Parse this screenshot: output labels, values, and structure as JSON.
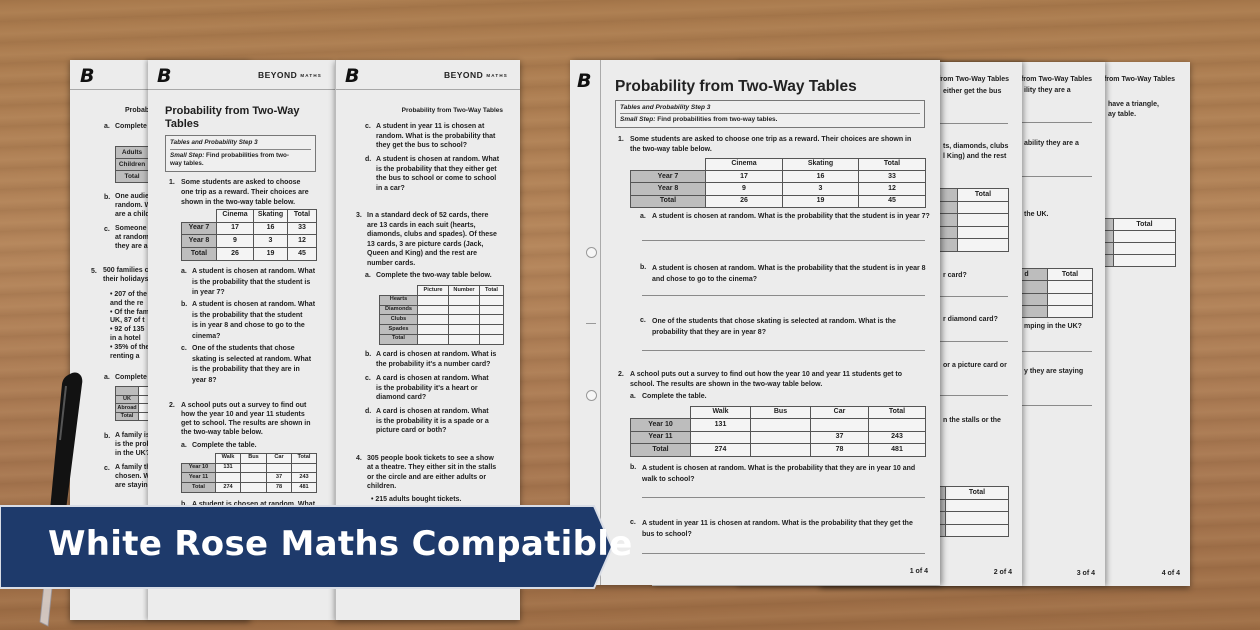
{
  "banner": {
    "text": "White Rose Maths Compatible",
    "color": "#1e3a6b"
  },
  "brand": {
    "logo_letter": "B",
    "name": "BEYOND",
    "sub": "MATHS"
  },
  "sheet1": {
    "title": "Probability from Two-Way Tables",
    "step": "Tables and Probability Step 3",
    "small_step_label": "Small Step:",
    "small_step": "Find probabilities from two-way tables.",
    "q1": {
      "num": "1.",
      "lines": [
        "Some students are asked to choose one trip as a reward. Their choices are shown in",
        "the two-way table below."
      ]
    },
    "table1": {
      "header": [
        "",
        "Cinema",
        "Skating",
        "Total"
      ],
      "rows": [
        [
          "Year 7",
          "17",
          "16",
          "33"
        ],
        [
          "Year 8",
          "9",
          "3",
          "12"
        ],
        [
          "Total",
          "26",
          "19",
          "45"
        ]
      ]
    },
    "q1a": {
      "num": "a.",
      "lines": [
        "A student is chosen at random. What is the probability that the student is in year 7?"
      ]
    },
    "q1b": {
      "num": "b.",
      "lines": [
        "A student is chosen at random. What is the probability that the student is in year 8",
        "and chose to go to the cinema?"
      ]
    },
    "q1c": {
      "num": "c.",
      "lines": [
        "One of the students that chose skating is selected at random. What is the",
        "probability that they are in year 8?"
      ]
    },
    "q2": {
      "num": "2.",
      "lines": [
        "A school puts out a survey to find out how the year 10 and year 11 students get to",
        "school. The results are shown in the two-way table below."
      ]
    },
    "q2a": {
      "num": "a.",
      "lines": [
        "Complete the table."
      ]
    },
    "table2": {
      "header": [
        "",
        "Walk",
        "Bus",
        "Car",
        "Total"
      ],
      "rows": [
        [
          "Year 10",
          "131",
          "",
          "",
          ""
        ],
        [
          "Year 11",
          "",
          "",
          "37",
          "243"
        ],
        [
          "Total",
          "274",
          "",
          "78",
          "481"
        ]
      ]
    },
    "q2b": {
      "num": "b.",
      "lines": [
        "A student is chosen at random. What is the probability that they are in year 10 and",
        "walk to school?"
      ]
    },
    "q2c": {
      "num": "c.",
      "lines": [
        "A student in year 11 is chosen at random. What is the probability that they get the",
        "bus to school?"
      ]
    },
    "footer": "1 of 4"
  },
  "sheet2": {
    "running_title": "Probability from Two-Way Tables",
    "frags": [
      "either get the bus",
      "ts, diamonds, clubs",
      "l King) and the rest",
      "r card?",
      "r diamond card?",
      "or a picture card or",
      "n the stalls or the"
    ],
    "tableA": {
      "header": [
        "",
        "Total"
      ],
      "rows": [
        [
          "",
          ""
        ],
        [
          "",
          ""
        ],
        [
          "",
          ""
        ],
        [
          "",
          ""
        ]
      ]
    },
    "tableB": {
      "header": [
        "",
        "Total"
      ],
      "rows": [
        [
          "",
          ""
        ],
        [
          "",
          ""
        ],
        [
          "",
          ""
        ]
      ]
    },
    "footer": "2 of 4"
  },
  "sheet3": {
    "running_title": "Probability from Two-Way Tables",
    "frags": [
      "ility they are a",
      "ability they are a",
      "the UK.",
      "mping in the UK?",
      "y they are staying"
    ],
    "table": {
      "header": [
        "d",
        "Total"
      ],
      "rows": [
        [
          "",
          ""
        ],
        [
          "",
          ""
        ],
        [
          "",
          ""
        ]
      ]
    },
    "footer": "3 of 4"
  },
  "sheet4": {
    "running_title": "Probability from Two-Way Tables",
    "frags": [
      "have a triangle,",
      "ay table."
    ],
    "table": {
      "header": [
        "",
        "Total"
      ],
      "rows": [
        [
          "",
          ""
        ],
        [
          "",
          ""
        ],
        [
          "",
          ""
        ]
      ]
    },
    "footer": "4 of 4"
  },
  "booklet_left": {
    "running_frag": "Probab",
    "a": {
      "num": "a.",
      "lines": [
        "Complete"
      ]
    },
    "table": {
      "rows": [
        [
          "Adults",
          ""
        ],
        [
          "Children",
          ""
        ],
        [
          "Total",
          ""
        ]
      ]
    },
    "b": {
      "num": "b.",
      "lines": [
        "One audie",
        "random. W",
        "are a child"
      ]
    },
    "c": {
      "num": "c.",
      "lines": [
        "Someone",
        "at random",
        "they are a"
      ]
    },
    "q5": {
      "num": "5.",
      "lines": [
        "500 families c",
        "their holidays"
      ]
    },
    "bullets": [
      "• 207 of the",
      "   and the re",
      "• Of the fam",
      "   UK, 87 of t",
      "• 92 of 135",
      "   in a hotel",
      "• 35% of the",
      "   renting a"
    ],
    "a2": {
      "num": "a.",
      "lines": [
        "Complete"
      ]
    },
    "table2": {
      "header": [
        "",
        "C"
      ],
      "rows": [
        [
          "UK",
          ""
        ],
        [
          "Abroad",
          ""
        ],
        [
          "Total",
          ""
        ]
      ]
    },
    "b2": {
      "num": "b.",
      "lines": [
        "A family is",
        "is the prob",
        "in the UK?"
      ]
    },
    "c2": {
      "num": "c.",
      "lines": [
        "A family th",
        "chosen. W",
        "are staying"
      ]
    }
  },
  "booklet_mid": {
    "title_lines": [
      "Probability from Two-Way",
      "Tables"
    ],
    "step": "Tables and Probability Step 3",
    "small_step_label": "Small Step:",
    "small_step_lines": [
      "Find probabilities from two-",
      "way tables."
    ],
    "q1": {
      "num": "1.",
      "lines": [
        "Some students are asked to choose",
        "one trip as a reward. Their choices are",
        "shown in the two-way table below."
      ]
    },
    "table1": {
      "header": [
        "",
        "Cinema",
        "Skating",
        "Total"
      ],
      "rows": [
        [
          "Year 7",
          "17",
          "16",
          "33"
        ],
        [
          "Year 8",
          "9",
          "3",
          "12"
        ],
        [
          "Total",
          "26",
          "19",
          "45"
        ]
      ]
    },
    "a": {
      "num": "a.",
      "lines": [
        "A student is chosen at random. What",
        "is the probability that the student is",
        "in year 7?"
      ]
    },
    "b": {
      "num": "b.",
      "lines": [
        "A student is chosen at random. What",
        "is the probability that the student",
        "is in year 8 and chose to go to the",
        "cinema?"
      ]
    },
    "c": {
      "num": "c.",
      "lines": [
        "One of the students that chose",
        "skating is selected at random. What",
        "is the probability that they are in",
        "year 8?"
      ]
    },
    "q2": {
      "num": "2.",
      "lines": [
        "A school puts out a survey to find out",
        "how the year 10 and year 11 students",
        "get to school. The results are shown in",
        "the two-way table below."
      ]
    },
    "q2a": {
      "num": "a.",
      "lines": [
        "Complete the table."
      ]
    },
    "table2": {
      "header": [
        "",
        "Walk",
        "Bus",
        "Car",
        "Total"
      ],
      "rows": [
        [
          "Year 10",
          "131",
          "",
          "",
          ""
        ],
        [
          "Year 11",
          "",
          "",
          "37",
          "243"
        ],
        [
          "Total",
          "274",
          "",
          "78",
          "481"
        ]
      ]
    },
    "q2b": {
      "num": "b.",
      "lines": [
        "A student is chosen at random. What"
      ]
    }
  },
  "booklet_right": {
    "running_title": "Probability from Two-Way Tables",
    "c": {
      "num": "c.",
      "lines": [
        "A student in year 11 is chosen at",
        "random. What is the probability that",
        "they get the bus to school?"
      ]
    },
    "d": {
      "num": "d.",
      "lines": [
        "A student is chosen at random. What",
        "is the probability that they either get",
        "the bus to school or come to school",
        "in a car?"
      ]
    },
    "q3": {
      "num": "3.",
      "lines": [
        "In a standard deck of 52 cards, there",
        "are 13 cards in each suit (hearts,",
        "diamonds, clubs and spades). Of these",
        "13 cards, 3 are picture cards (Jack,",
        "Queen and King) and the rest are",
        "number cards."
      ]
    },
    "q3a": {
      "num": "a.",
      "lines": [
        "Complete the two-way table below."
      ]
    },
    "table": {
      "header": [
        "",
        "Picture",
        "Number",
        "Total"
      ],
      "rows": [
        [
          "Hearts",
          "",
          "",
          ""
        ],
        [
          "Diamonds",
          "",
          "",
          ""
        ],
        [
          "Clubs",
          "",
          "",
          ""
        ],
        [
          "Spades",
          "",
          "",
          ""
        ],
        [
          "Total",
          "",
          "",
          ""
        ]
      ]
    },
    "q3b": {
      "num": "b.",
      "lines": [
        "A card is chosen at random. What is",
        "the probability it's a number card?"
      ]
    },
    "q3c": {
      "num": "c.",
      "lines": [
        "A card is chosen at random. What",
        "is the probability it's a heart or",
        "diamond card?"
      ]
    },
    "q3d": {
      "num": "d.",
      "lines": [
        "A card is chosen at random. What",
        "is the probability it is a spade or a",
        "picture card or both?"
      ]
    },
    "q4": {
      "num": "4.",
      "lines": [
        "305 people book tickets to see a show",
        "at a theatre. They either sit in the stalls",
        "or the circle and are either adults or",
        "children."
      ]
    },
    "bullet": "• 215 adults bought tickets."
  }
}
